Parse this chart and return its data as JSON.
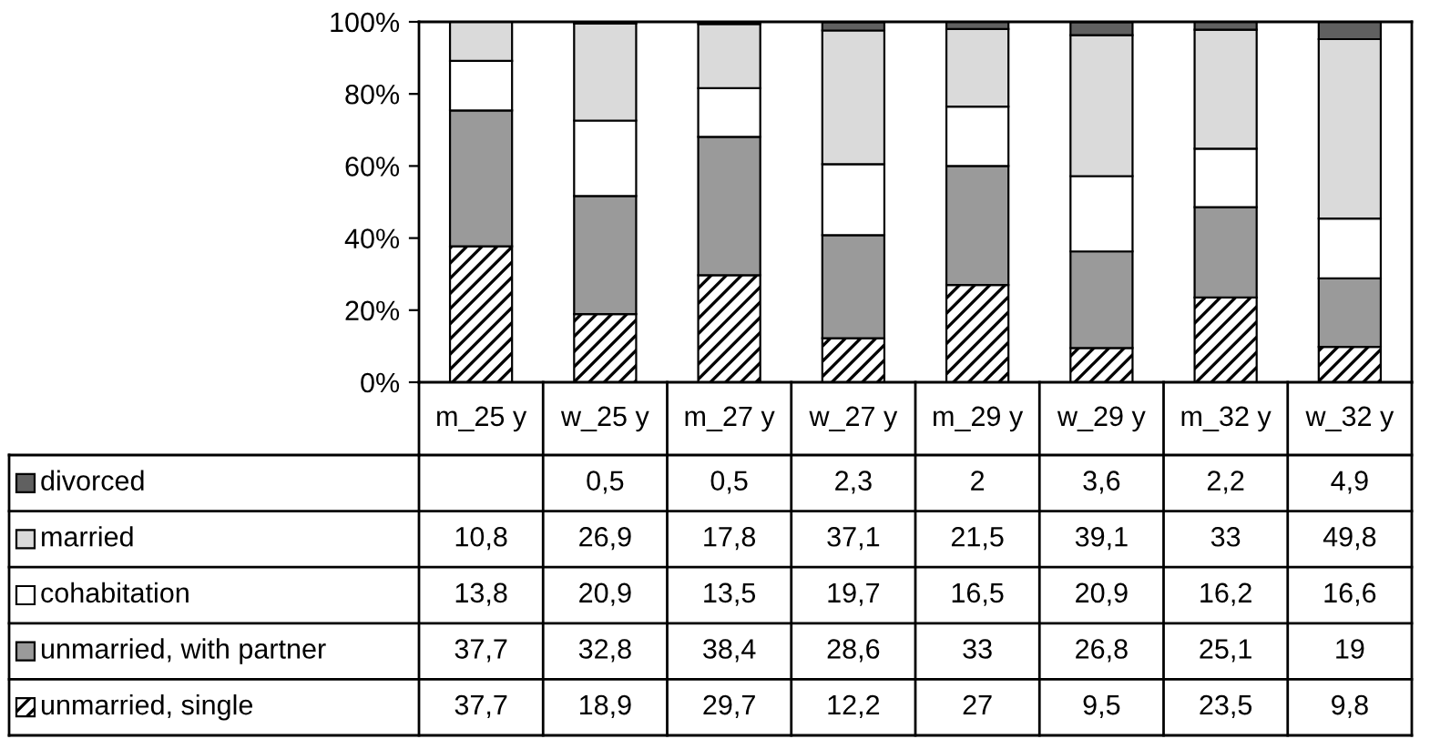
{
  "chart_data": {
    "type": "bar",
    "stacked": true,
    "legend": "bottom",
    "grid": false,
    "categories": [
      "m_25 y",
      "w_25 y",
      "m_27 y",
      "w_27 y",
      "m_29 y",
      "w_29 y",
      "m_32 y",
      "w_32 y"
    ],
    "ylim": [
      0,
      100
    ],
    "yticks": [
      {
        "value": 0,
        "label": "0%"
      },
      {
        "value": 20,
        "label": "20%"
      },
      {
        "value": 40,
        "label": "40%"
      },
      {
        "value": 60,
        "label": "60%"
      },
      {
        "value": 80,
        "label": "80%"
      },
      {
        "value": 100,
        "label": "100%"
      }
    ],
    "series": [
      {
        "name": "unmarried, single",
        "color": "#000000",
        "values": [
          37.7,
          18.9,
          29.7,
          12.2,
          27,
          9.5,
          23.5,
          9.8
        ],
        "value_labels": [
          "37,7",
          "18,9",
          "29,7",
          "12,2",
          "27",
          "9,5",
          "23,5",
          "9,8"
        ]
      },
      {
        "name": "unmarried, with partner",
        "color": "#9a9a9a",
        "values": [
          37.7,
          32.8,
          38.4,
          28.6,
          33,
          26.8,
          25.1,
          19
        ],
        "value_labels": [
          "37,7",
          "32,8",
          "38,4",
          "28,6",
          "33",
          "26,8",
          "25,1",
          "19"
        ]
      },
      {
        "name": "cohabitation",
        "color": "#ffffff",
        "values": [
          13.8,
          20.9,
          13.5,
          19.7,
          16.5,
          20.9,
          16.2,
          16.6
        ],
        "value_labels": [
          "13,8",
          "20,9",
          "13,5",
          "19,7",
          "16,5",
          "20,9",
          "16,2",
          "16,6"
        ]
      },
      {
        "name": "married",
        "color": "#dadada",
        "values": [
          10.8,
          26.9,
          17.8,
          37.1,
          21.5,
          39.1,
          33,
          49.8
        ],
        "value_labels": [
          "10,8",
          "26,9",
          "17,8",
          "37,1",
          "21,5",
          "39,1",
          "33",
          "49,8"
        ]
      },
      {
        "name": "divorced",
        "color": "#606060",
        "values": [
          null,
          0.5,
          0.5,
          2.3,
          2,
          3.6,
          2.2,
          4.9
        ],
        "value_labels": [
          null,
          "0,5",
          "0,5",
          "2,3",
          "2",
          "3,6",
          "2,2",
          "4,9"
        ]
      }
    ]
  }
}
